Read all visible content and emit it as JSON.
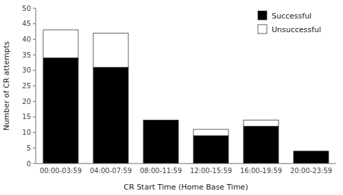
{
  "chart_data": {
    "type": "bar",
    "stacked": true,
    "categories": [
      "00:00-03:59",
      "04:00-07:59",
      "08:00-11:59",
      "12:00-15:59",
      "16:00-19:59",
      "20:00-23:59"
    ],
    "series": [
      {
        "name": "Successful",
        "color": "#000000",
        "values": [
          34,
          31,
          14,
          9,
          12,
          4
        ]
      },
      {
        "name": "Unsuccessful",
        "color": "#ffffff",
        "values": [
          9,
          11,
          0,
          2,
          2,
          0
        ]
      }
    ],
    "xlabel": "CR Start Time (Home Base Time)",
    "ylabel": "Number of CR attempts",
    "ylim": [
      0,
      50
    ],
    "yticks": [
      0,
      5,
      10,
      15,
      20,
      25,
      30,
      35,
      40,
      45,
      50
    ],
    "legend": "upper right",
    "grid": false
  }
}
